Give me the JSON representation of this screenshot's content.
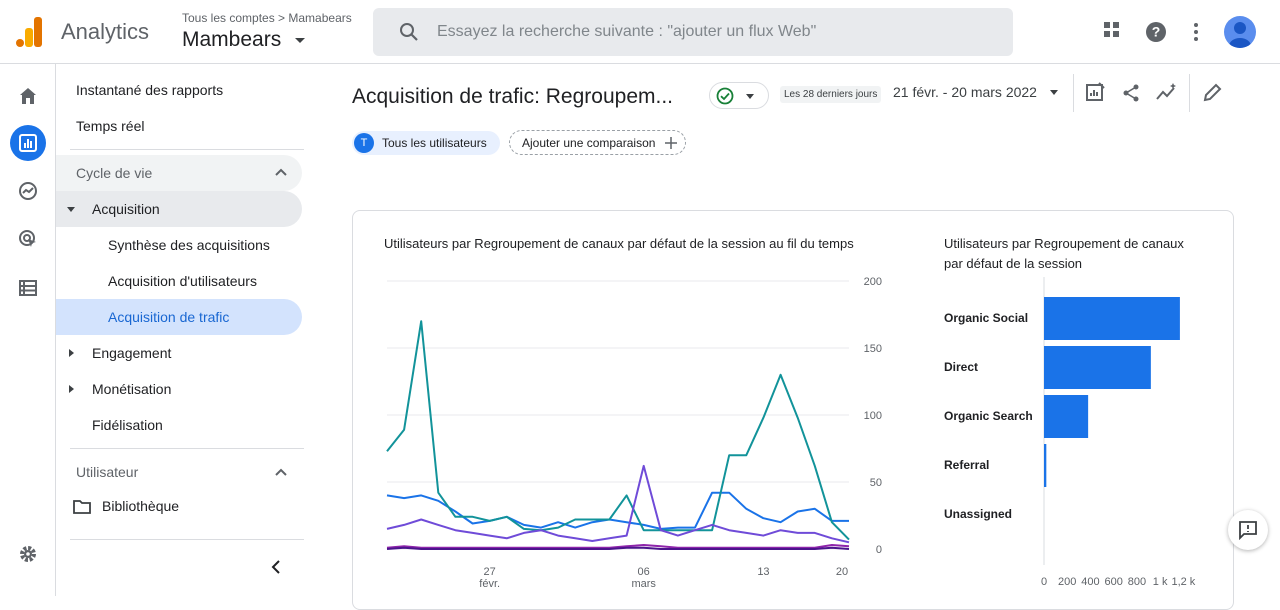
{
  "header": {
    "app_name": "Analytics",
    "breadcrumb": "Tous les comptes > Mamabears",
    "account_name": "Mambears",
    "search_placeholder": "Essayez la recherche suivante : \"ajouter un flux Web\""
  },
  "nav": {
    "snapshot": "Instantané des rapports",
    "realtime": "Temps réel",
    "lifecycle": "Cycle de vie",
    "acquisition": "Acquisition",
    "acq_overview": "Synthèse des acquisitions",
    "user_acq": "Acquisition d'utilisateurs",
    "traffic_acq": "Acquisition de trafic",
    "engagement": "Engagement",
    "monetization": "Monétisation",
    "retention": "Fidélisation",
    "user_section": "Utilisateur",
    "library": "Bibliothèque"
  },
  "report": {
    "title": "Acquisition de trafic: Regroupem...",
    "date_label": "Les 28 derniers jours",
    "date_range": "21 févr. - 20 mars 2022",
    "segment_letter": "T",
    "segment": "Tous les utilisateurs",
    "add_comparison": "Ajouter une comparaison"
  },
  "colors": {
    "accent": "#1a73e8",
    "selected_bg": "#d3e3fd",
    "bar": "#1a73e8"
  },
  "chart_data": [
    {
      "type": "line",
      "title": "Utilisateurs par Regroupement de canaux par défaut de la session au fil du temps",
      "x_ticks": [
        "27",
        "févr.",
        "06",
        "mars",
        "13",
        "20"
      ],
      "y_ticks": [
        "200",
        "150",
        "100",
        "50",
        "0"
      ],
      "ylim": [
        0,
        200
      ],
      "series": [
        {
          "color": "#1a73e8",
          "values": [
            40,
            38,
            40,
            36,
            28,
            19,
            21,
            24,
            18,
            16,
            20,
            16,
            20,
            22,
            20,
            18,
            15,
            16,
            16,
            42,
            42,
            30,
            23,
            20,
            28,
            30,
            21,
            21
          ]
        },
        {
          "color": "#12939a",
          "values": [
            73,
            89,
            170,
            42,
            24,
            24,
            21,
            24,
            15,
            14,
            16,
            22,
            22,
            22,
            40,
            14,
            14,
            14,
            14,
            14,
            70,
            70,
            98,
            130,
            98,
            62,
            20,
            7
          ]
        },
        {
          "color": "#6f4bd8",
          "values": [
            15,
            18,
            22,
            18,
            14,
            12,
            10,
            8,
            12,
            14,
            10,
            8,
            6,
            8,
            10,
            62,
            14,
            10,
            14,
            18,
            14,
            12,
            10,
            14,
            12,
            12,
            8,
            5
          ]
        },
        {
          "color": "#8e24aa",
          "values": [
            1,
            2,
            1,
            1,
            1,
            1,
            1,
            1,
            1,
            1,
            1,
            1,
            1,
            1,
            2,
            3,
            2,
            1,
            1,
            1,
            1,
            1,
            1,
            1,
            1,
            1,
            3,
            2
          ]
        },
        {
          "color": "#4a148c",
          "values": [
            0,
            1,
            0,
            0,
            0,
            0,
            0,
            0,
            0,
            0,
            0,
            0,
            0,
            0,
            1,
            1,
            0,
            0,
            0,
            0,
            0,
            0,
            0,
            0,
            0,
            0,
            1,
            0
          ]
        }
      ]
    },
    {
      "type": "bar",
      "title": "Utilisateurs par Regroupement de canaux par défaut de la session",
      "categories": [
        "Organic Social",
        "Direct",
        "Organic Search",
        "Referral",
        "Unassigned"
      ],
      "values": [
        1170,
        920,
        380,
        20,
        0
      ],
      "x_ticks": [
        "0",
        "200",
        "400",
        "600",
        "800",
        "1 k",
        "1,2 k"
      ],
      "xlim": [
        0,
        1300
      ]
    }
  ]
}
